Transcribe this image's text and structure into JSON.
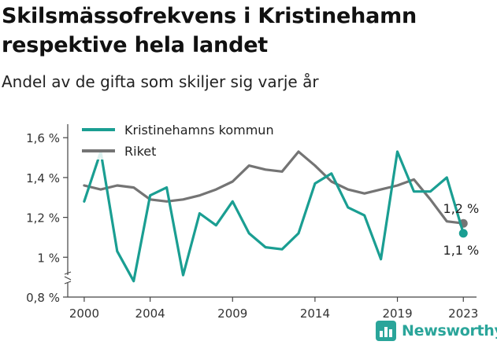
{
  "header": {
    "title": "Skilsmässofrekvens i Kristinehamn respektive hela landet",
    "subtitle": "Andel av de gifta som skiljer sig varje år"
  },
  "brand": {
    "name": "Newsworthy",
    "color": "#2aa59a",
    "icon": "bar-chart-logo-icon"
  },
  "chart_data": {
    "type": "line",
    "title": "Skilsmässofrekvens i Kristinehamn respektive hela landet",
    "subtitle": "Andel av de gifta som skiljer sig varje år",
    "x": [
      2000,
      2001,
      2002,
      2003,
      2004,
      2005,
      2006,
      2007,
      2008,
      2009,
      2010,
      2011,
      2012,
      2013,
      2014,
      2015,
      2016,
      2017,
      2018,
      2019,
      2020,
      2021,
      2022,
      2023
    ],
    "xlim": [
      1999,
      2023.8
    ],
    "ylim": [
      0.8,
      1.66
    ],
    "x_ticks": [
      {
        "value": 2000,
        "label": "2000"
      },
      {
        "value": 2004,
        "label": "2004"
      },
      {
        "value": 2009,
        "label": "2009"
      },
      {
        "value": 2014,
        "label": "2014"
      },
      {
        "value": 2019,
        "label": "2019"
      },
      {
        "value": 2023,
        "label": "2023"
      }
    ],
    "y_ticks": [
      {
        "value": 0.8,
        "label": "0,8 %"
      },
      {
        "value": 1.0,
        "label": "1 %"
      },
      {
        "value": 1.2,
        "label": "1,2 %"
      },
      {
        "value": 1.4,
        "label": "1,4 %"
      },
      {
        "value": 1.6,
        "label": "1,6 %"
      }
    ],
    "grid": false,
    "axis_break": true,
    "legend_position": "top-left",
    "series": [
      {
        "name": "Kristinehamns kommun",
        "color": "#1a9e92",
        "values": [
          1.28,
          1.53,
          1.03,
          0.88,
          1.31,
          1.35,
          0.91,
          1.22,
          1.16,
          1.28,
          1.12,
          1.05,
          1.04,
          1.12,
          1.37,
          1.42,
          1.25,
          1.21,
          0.99,
          1.53,
          1.33,
          1.33,
          1.4,
          1.12
        ],
        "end_label": "1,1 %"
      },
      {
        "name": "Riket",
        "color": "#747474",
        "values": [
          1.36,
          1.34,
          1.36,
          1.35,
          1.29,
          1.28,
          1.29,
          1.31,
          1.34,
          1.38,
          1.46,
          1.44,
          1.43,
          1.53,
          1.46,
          1.38,
          1.34,
          1.32,
          1.34,
          1.36,
          1.39,
          1.29,
          1.18,
          1.17
        ],
        "end_label": "1,2 %"
      }
    ]
  }
}
